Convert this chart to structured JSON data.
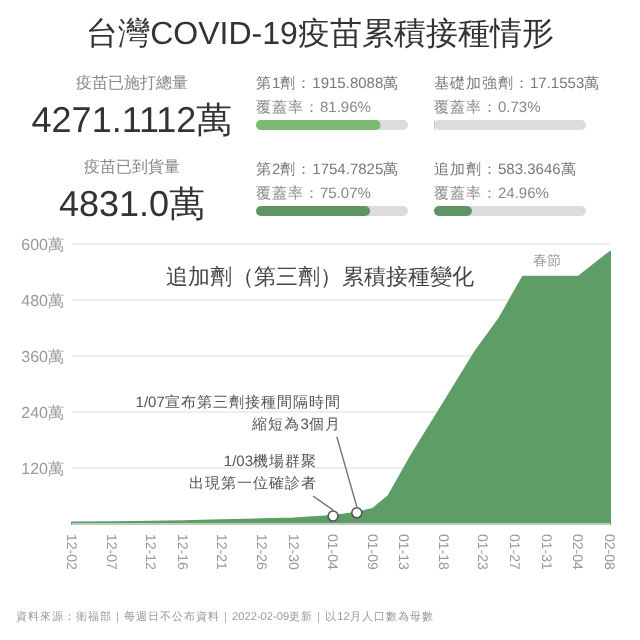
{
  "chart_data": [
    {
      "type": "other",
      "title": "台灣COVID-19疫苗累積接種情形",
      "annotations": [
        "疫苗已施打總量",
        "4271.1112萬",
        "疫苗已到貨量",
        "4831.0萬"
      ],
      "categories": [
        "第1劑：1915.8088萬",
        "基礎加強劑：17.1553萬",
        "第2劑：1754.7825萬",
        "追加劑：583.3646萬"
      ],
      "values": [
        81.96,
        0.73,
        75.07,
        24.96
      ],
      "value_labels": [
        "覆蓋率：81.96%",
        "覆蓋率：0.73%",
        "覆蓋率：75.07%",
        "覆蓋率：24.96%"
      ],
      "colors": [
        "#7cba74",
        "#c8c8c8",
        "#5f9565",
        "#5f9565"
      ]
    },
    {
      "type": "area",
      "title": "追加劑（第三劑）累積接種變化",
      "color": "#5e9e66",
      "grid": "y",
      "x": [
        "2021-12-02",
        "2021-12-07",
        "2021-12-12",
        "2021-12-16",
        "2021-12-21",
        "2021-12-26",
        "2021-12-30",
        "2022-01-04",
        "2022-01-07",
        "2022-01-09",
        "2022-01-11",
        "2022-01-14",
        "2022-01-18",
        "2022-01-22",
        "2022-01-25",
        "2022-01-28",
        "2022-02-04",
        "2022-02-08"
      ],
      "values": [
        3,
        4,
        5,
        6,
        8,
        10,
        12,
        17,
        24,
        32,
        60,
        150,
        260,
        370,
        440,
        530,
        530,
        583
      ],
      "xlim": [
        "2021-12-02",
        "2022-02-08"
      ],
      "xticks": [
        {
          "value": "2021-12-02",
          "label": "12-02"
        },
        {
          "value": "2021-12-07",
          "label": "12-07"
        },
        {
          "value": "2021-12-12",
          "label": "12-12"
        },
        {
          "value": "2021-12-16",
          "label": "12-16"
        },
        {
          "value": "2021-12-21",
          "label": "12-21"
        },
        {
          "value": "2021-12-26",
          "label": "12-26"
        },
        {
          "value": "2021-12-30",
          "label": "12-30"
        },
        {
          "value": "2022-01-04",
          "label": "01-04"
        },
        {
          "value": "2022-01-09",
          "label": "01-09"
        },
        {
          "value": "2022-01-13",
          "label": "01-13"
        },
        {
          "value": "2022-01-18",
          "label": "01-18"
        },
        {
          "value": "2022-01-23",
          "label": "01-23"
        },
        {
          "value": "2022-01-27",
          "label": "01-27"
        },
        {
          "value": "2022-01-31",
          "label": "01-31"
        },
        {
          "value": "2022-02-04",
          "label": "02-04"
        },
        {
          "value": "2022-02-08",
          "label": "02-08"
        }
      ],
      "ylim": [
        0,
        600
      ],
      "yticks": [
        {
          "value": 120,
          "label": "120萬"
        },
        {
          "value": 240,
          "label": "240萬"
        },
        {
          "value": 360,
          "label": "360萬"
        },
        {
          "value": 480,
          "label": "480萬"
        },
        {
          "value": 600,
          "label": "600萬"
        }
      ],
      "annotations": [
        {
          "text": "春節",
          "x": "2022-01-31",
          "y": 530
        },
        {
          "text": "1/03機場群聚出現第一位確診者",
          "x": "2022-01-04",
          "y": 17
        },
        {
          "text": "1/07宣布第三劑接種間隔時間縮短為3個月",
          "x": "2022-01-07",
          "y": 24
        },
        "資料來源：衛福部｜每週日不公布資料｜2022-02-09更新｜以12月人口數為母數"
      ]
    }
  ]
}
